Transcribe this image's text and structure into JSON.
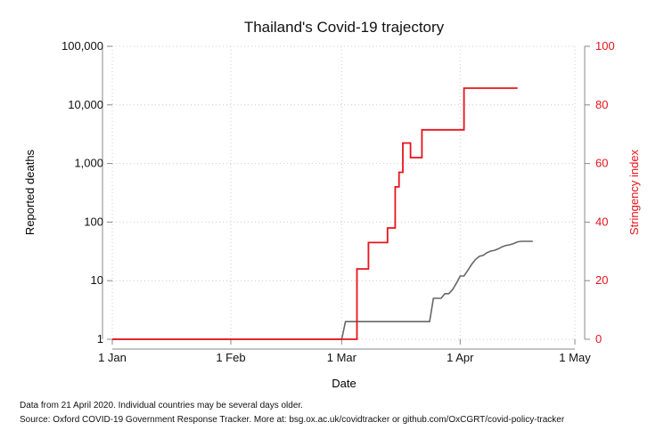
{
  "chart_data": {
    "type": "line",
    "title": "Thailand's Covid-19 trajectory",
    "xlabel": "Date",
    "x_ticks": [
      "1 Jan",
      "1 Feb",
      "1 Mar",
      "1 Apr",
      "1 May"
    ],
    "x_tick_dates": [
      "2020-01-01",
      "2020-02-01",
      "2020-03-01",
      "2020-04-01",
      "2020-05-01"
    ],
    "xlim": [
      "2020-01-01",
      "2020-05-01"
    ],
    "y_left": {
      "label": "Reported deaths",
      "scale": "log",
      "ticks": [
        "1",
        "10",
        "100",
        "1,000",
        "10,000",
        "100,000"
      ],
      "tick_values": [
        1,
        10,
        100,
        1000,
        10000,
        100000
      ],
      "lim": [
        1,
        100000
      ]
    },
    "y_right": {
      "label": "Stringency index",
      "ticks": [
        "0",
        "20",
        "40",
        "60",
        "80",
        "100"
      ],
      "tick_values": [
        0,
        20,
        40,
        60,
        80,
        100
      ],
      "lim": [
        0,
        100
      ],
      "color": "#e8131b"
    },
    "grid": true,
    "series": [
      {
        "axis": "left",
        "color": "#666666",
        "points": [
          [
            "2020-01-01",
            1
          ],
          [
            "2020-03-01",
            1
          ],
          [
            "2020-03-02",
            2
          ],
          [
            "2020-03-24",
            2
          ],
          [
            "2020-03-25",
            5
          ],
          [
            "2020-03-27",
            5
          ],
          [
            "2020-03-28",
            6
          ],
          [
            "2020-03-29",
            6
          ],
          [
            "2020-03-30",
            7
          ],
          [
            "2020-03-31",
            9
          ],
          [
            "2020-04-01",
            12
          ],
          [
            "2020-04-02",
            12
          ],
          [
            "2020-04-03",
            15
          ],
          [
            "2020-04-04",
            19
          ],
          [
            "2020-04-05",
            23
          ],
          [
            "2020-04-06",
            26
          ],
          [
            "2020-04-07",
            27
          ],
          [
            "2020-04-08",
            30
          ],
          [
            "2020-04-09",
            32
          ],
          [
            "2020-04-10",
            33
          ],
          [
            "2020-04-11",
            35
          ],
          [
            "2020-04-12",
            38
          ],
          [
            "2020-04-13",
            40
          ],
          [
            "2020-04-14",
            41
          ],
          [
            "2020-04-15",
            43
          ],
          [
            "2020-04-16",
            46
          ],
          [
            "2020-04-17",
            47
          ],
          [
            "2020-04-20",
            47
          ]
        ]
      },
      {
        "axis": "right",
        "color": "#e8131b",
        "points": [
          [
            "2020-01-01",
            0
          ],
          [
            "2020-03-05",
            0
          ],
          [
            "2020-03-05",
            24
          ],
          [
            "2020-03-08",
            24
          ],
          [
            "2020-03-08",
            33
          ],
          [
            "2020-03-13",
            33
          ],
          [
            "2020-03-13",
            38
          ],
          [
            "2020-03-15",
            38
          ],
          [
            "2020-03-15",
            52
          ],
          [
            "2020-03-16",
            52
          ],
          [
            "2020-03-16",
            57
          ],
          [
            "2020-03-17",
            57
          ],
          [
            "2020-03-17",
            67
          ],
          [
            "2020-03-19",
            67
          ],
          [
            "2020-03-19",
            62
          ],
          [
            "2020-03-22",
            62
          ],
          [
            "2020-03-22",
            71.5
          ],
          [
            "2020-04-02",
            71.5
          ],
          [
            "2020-04-02",
            85.7
          ],
          [
            "2020-04-16",
            85.7
          ]
        ]
      }
    ]
  },
  "notes": {
    "line1": "Data from 21 April 2020. Individual countries may be several days older.",
    "line2": "Source: Oxford COVID-19 Government Response Tracker. More at: bsg.ox.ac.uk/covidtracker or github.com/OxCGRT/covid-policy-tracker"
  }
}
